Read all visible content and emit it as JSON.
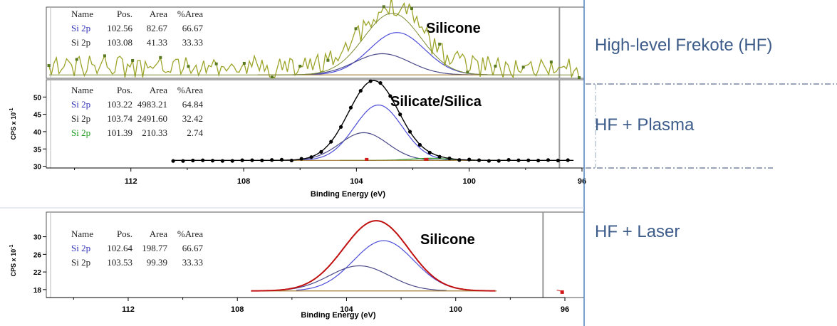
{
  "colors": {
    "frame": "#4f81bd",
    "label_text": "#3d5c8a",
    "hf_envelope": "#9ca428",
    "hf_points": "#5a7a20",
    "plasma_points": "#000000",
    "laser_data": "#d01818",
    "laser_envelope": "#c01010",
    "comp_blue": "#4d4dd9",
    "comp_dark": "#4a4a8a",
    "comp_green": "#2a9a2a",
    "baseline": "#a07a30",
    "label_blue": "#3030b8",
    "label_green": "#1a9a1a"
  },
  "labels": {
    "hf": "High-level Frekote (HF)",
    "plasma": "HF + Plasma",
    "laser": "HF + Laser"
  },
  "chart_data": [
    {
      "type": "line",
      "id": "hf",
      "title": "Silicone",
      "xlim": [
        96,
        115
      ],
      "x_reversed": true,
      "ylim": [
        0,
        1
      ],
      "table": {
        "headers": [
          "Name",
          "Pos.",
          "Area",
          "%Area"
        ],
        "rows": [
          [
            "Si 2p",
            "102.56",
            "82.67",
            "66.67"
          ],
          [
            "Si 2p",
            "103.08",
            "41.33",
            "33.33"
          ]
        ]
      },
      "components": [
        {
          "label": "Si 2p",
          "center": 102.56,
          "height": 0.62,
          "fwhm": 2.3
        },
        {
          "label": "Si 2p",
          "center": 103.08,
          "height": 0.31,
          "fwhm": 2.3
        }
      ],
      "baseline": 0.05
    },
    {
      "type": "line",
      "id": "plasma",
      "title": "Silicate/Silica",
      "xlim": [
        96,
        115
      ],
      "x_reversed": true,
      "xlabel": "Binding Energy (eV)",
      "ylabel": "CPS x 10",
      "ylabel_exp": "-1",
      "yticks": [
        30,
        35,
        40,
        45,
        50
      ],
      "ylim": [
        29.5,
        55
      ],
      "xticks": [
        112,
        108,
        104,
        100,
        96
      ],
      "table": {
        "headers": [
          "Name",
          "Pos.",
          "Area",
          "%Area"
        ],
        "rows": [
          [
            "Si 2p",
            "103.22",
            "4983.21",
            "64.84"
          ],
          [
            "Si 2p",
            "103.74",
            "2491.60",
            "32.42"
          ],
          [
            "Si 2p",
            "101.39",
            "210.33",
            "2.74"
          ]
        ]
      },
      "components": [
        {
          "label": "Si 2p",
          "center": 103.22,
          "height": 16.0,
          "fwhm": 2.0
        },
        {
          "label": "Si 2p",
          "center": 103.74,
          "height": 8.0,
          "fwhm": 2.0
        },
        {
          "label": "Si 2p",
          "center": 101.39,
          "height": 0.6,
          "fwhm": 1.6
        }
      ],
      "baseline": 31.7
    },
    {
      "type": "line",
      "id": "laser",
      "title": "Silicone",
      "xlim": [
        96,
        115
      ],
      "x_reversed": true,
      "xlabel": "Binding Energy (eV)",
      "ylabel": "CPS x 10",
      "ylabel_exp": "-1",
      "yticks": [
        18,
        22,
        26,
        30
      ],
      "ylim": [
        16.2,
        33
      ],
      "xticks": [
        112,
        108,
        104,
        100,
        96
      ],
      "table": {
        "headers": [
          "Name",
          "Pos.",
          "Area",
          "%Area"
        ],
        "rows": [
          [
            "Si 2p",
            "102.64",
            "198.77",
            "66.67"
          ],
          [
            "Si 2p",
            "103.53",
            "99.39",
            "33.33"
          ]
        ]
      },
      "components": [
        {
          "label": "Si 2p",
          "center": 102.64,
          "height": 11.4,
          "fwhm": 2.6
        },
        {
          "label": "Si 2p",
          "center": 103.53,
          "height": 5.7,
          "fwhm": 2.6
        }
      ],
      "baseline": 17.7
    }
  ]
}
